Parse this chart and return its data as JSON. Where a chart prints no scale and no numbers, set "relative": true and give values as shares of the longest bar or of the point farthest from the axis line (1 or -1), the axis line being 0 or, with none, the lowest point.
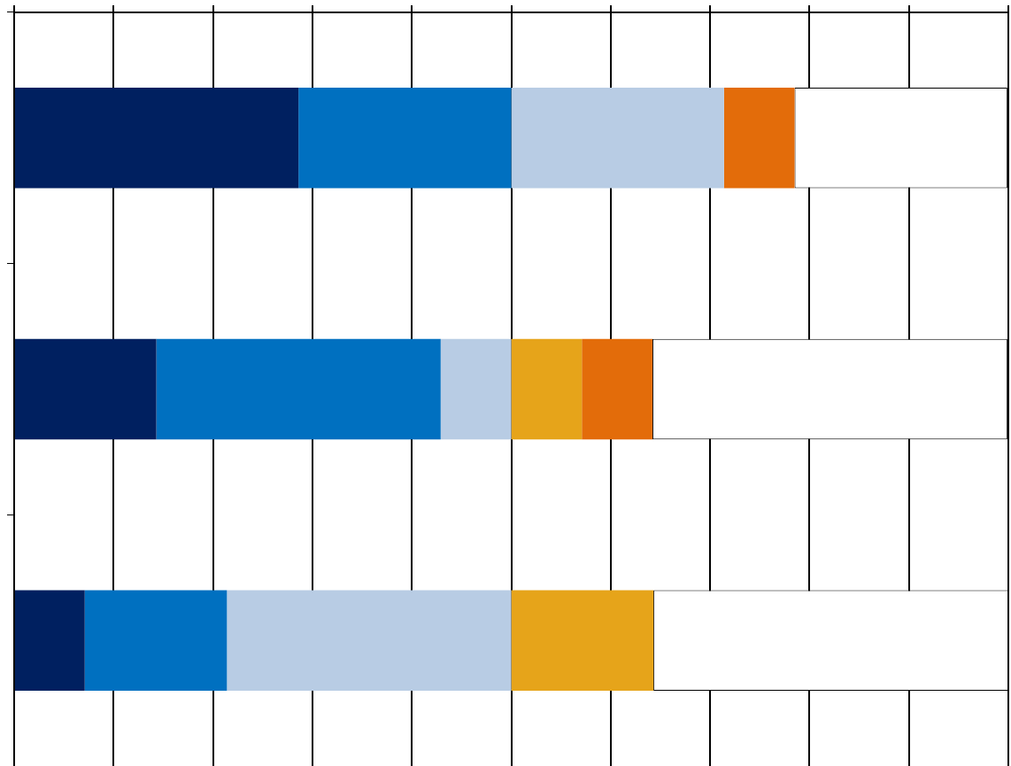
{
  "chart_data": {
    "type": "bar",
    "orientation": "horizontal",
    "stacked": true,
    "relative": true,
    "grid": "x",
    "legend": false,
    "tick_labels": false,
    "categories": [
      null,
      null,
      null
    ],
    "series": [
      {
        "color": "#002060",
        "values": [
          0.286,
          0.143,
          0.071
        ]
      },
      {
        "color": "#0070c0",
        "values": [
          0.214,
          0.286,
          0.143
        ]
      },
      {
        "color": "#b8cce4",
        "values": [
          0.214,
          0.071,
          0.286
        ]
      },
      {
        "color": "#e6a41a",
        "values": [
          0,
          0.071,
          0.143
        ]
      },
      {
        "color": "#e36c0a",
        "values": [
          0.071,
          0.071,
          0
        ]
      },
      {
        "color": "#ffffff",
        "values": [
          0.214,
          0.357,
          0.357
        ]
      }
    ]
  }
}
